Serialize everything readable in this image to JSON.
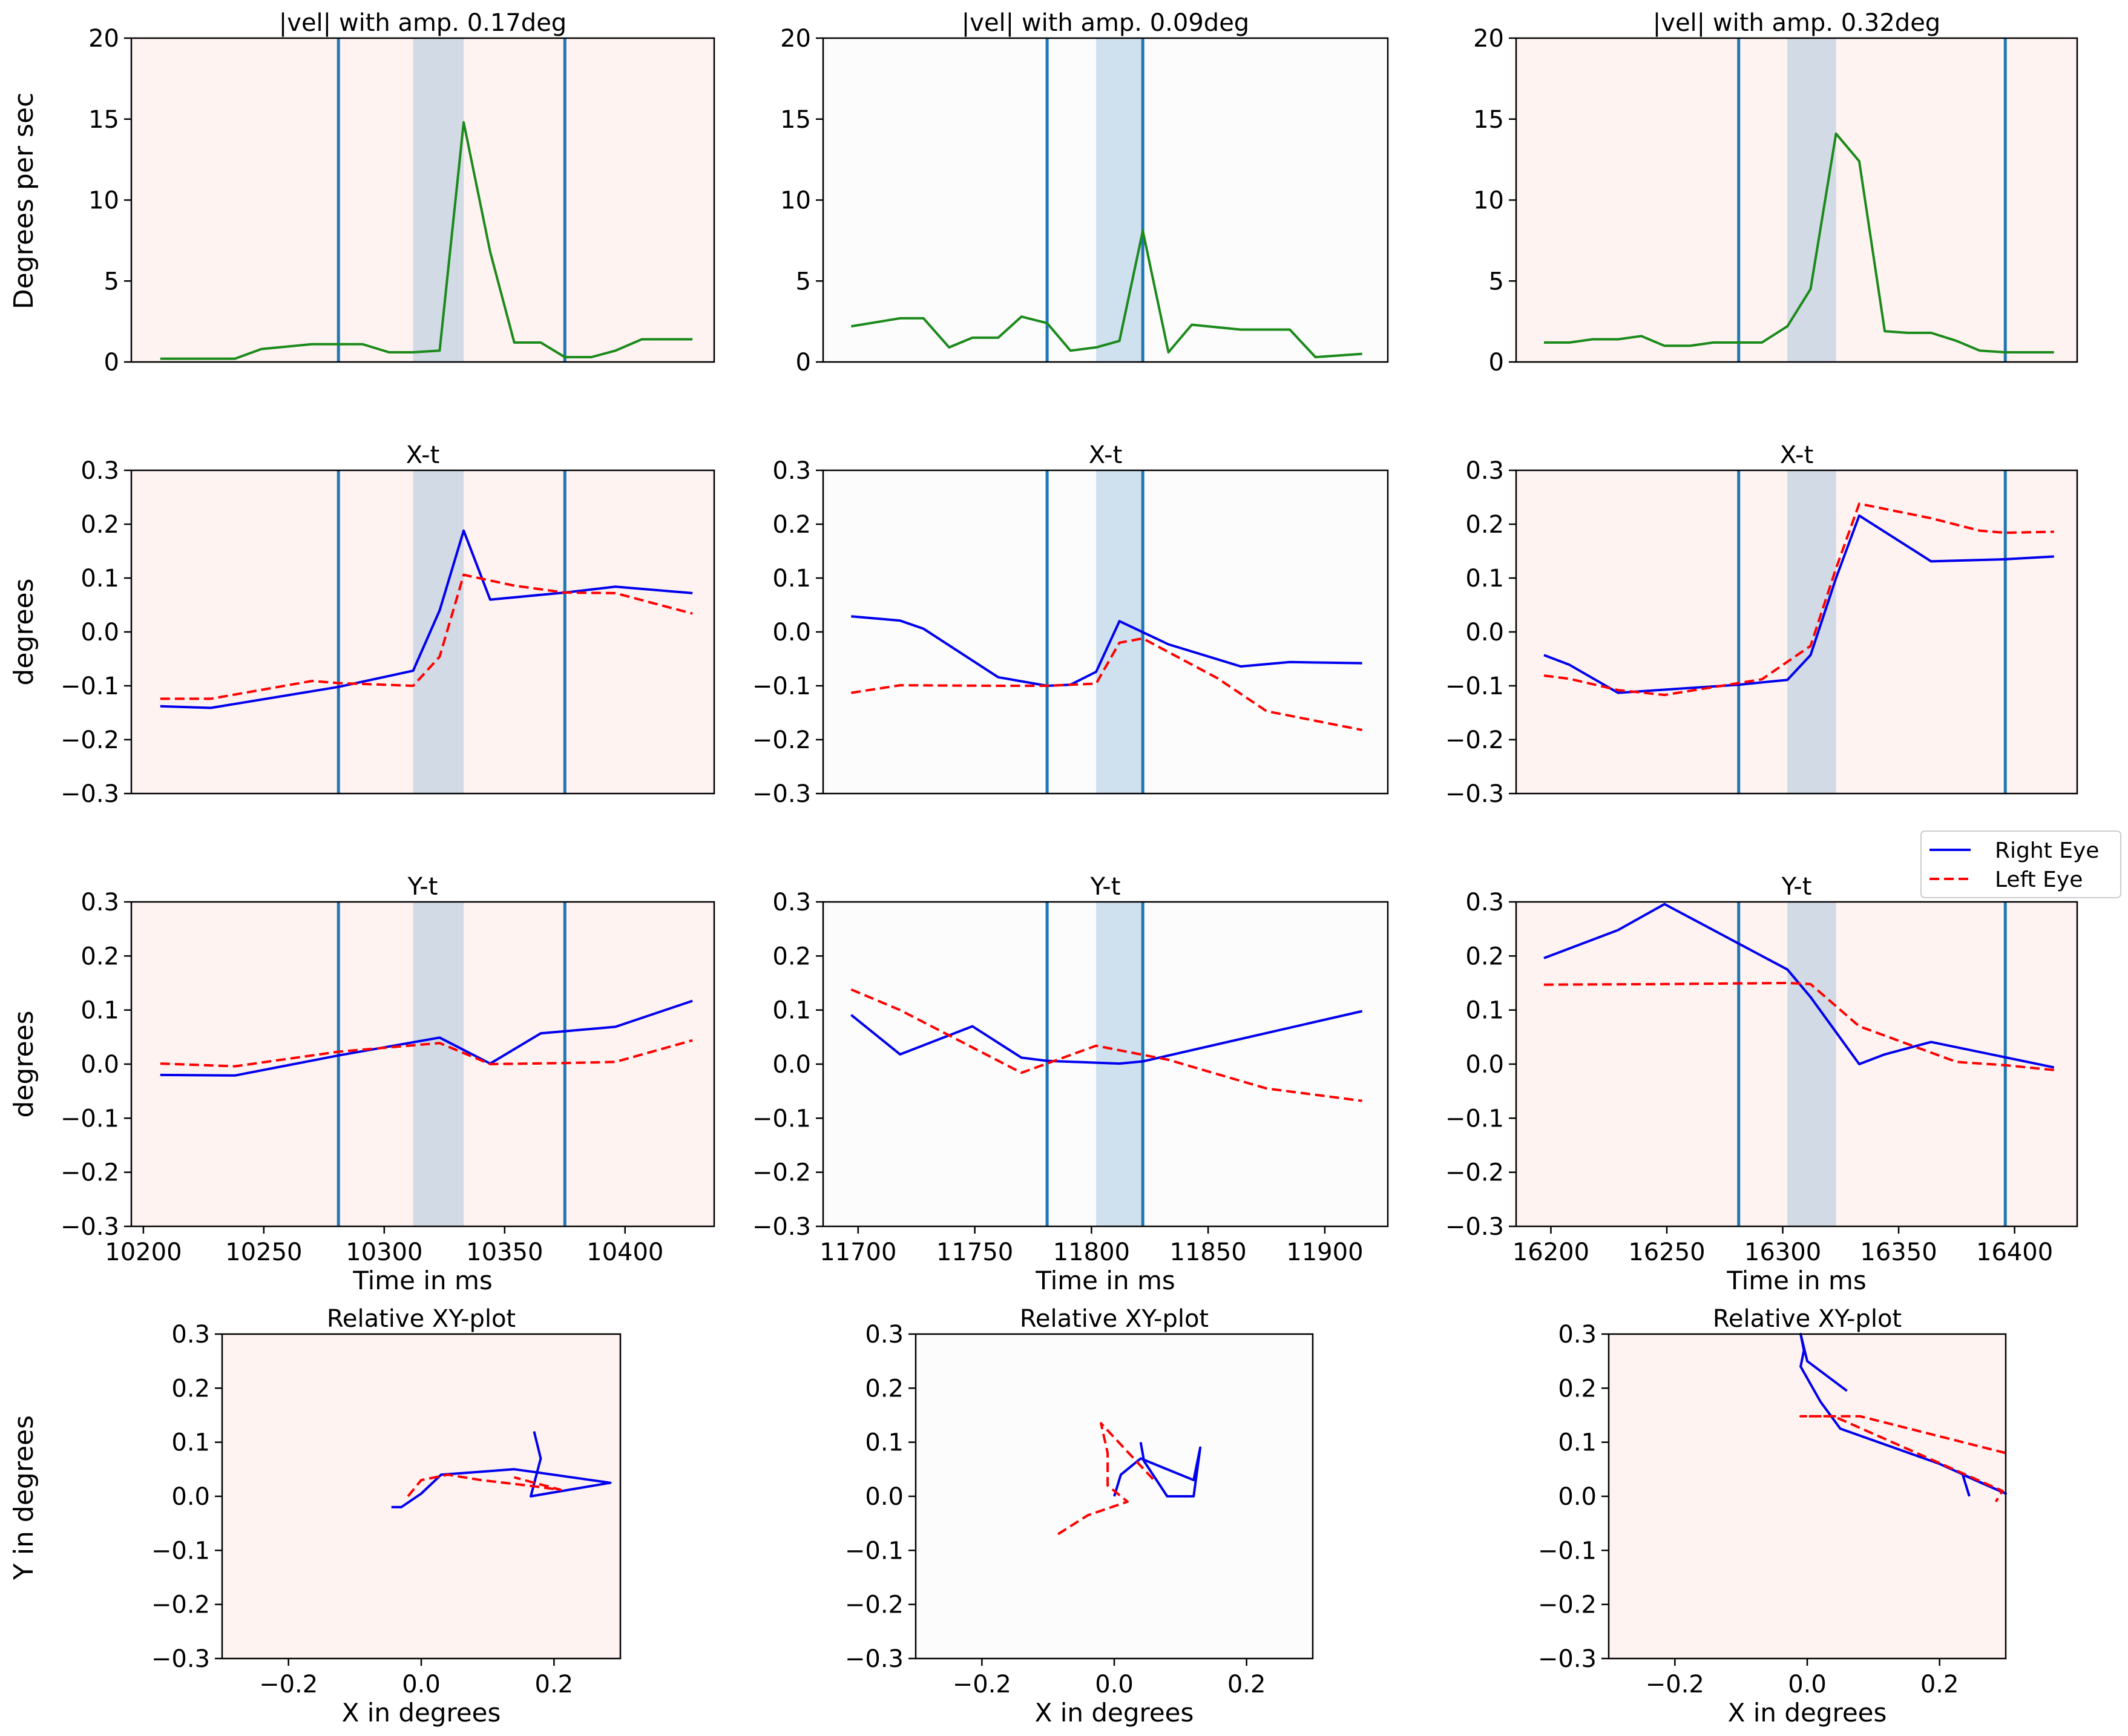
{
  "figure": {
    "row_labels": {
      "velocity": "Degrees per sec",
      "position": "degrees",
      "xy": "Y in degrees"
    },
    "legend": {
      "right_eye": "Right Eye",
      "left_eye": "Left Eye"
    },
    "colors": {
      "velocity_line": "#1a8a1a",
      "right_eye": "#0000ee",
      "left_eye": "#ff0000",
      "event_line": "#1f77b4",
      "band_dark": "#d2dae5",
      "band_light": "#cfe0ef",
      "bg_pink": "#fff3f1",
      "bg_white": "#fcfcfc"
    }
  },
  "chart_data": [
    {
      "type": "line",
      "panel": "velocity",
      "col": 0,
      "title": "|vel| with amp. 0.17deg",
      "xlim": [
        10195,
        10437
      ],
      "ylim": [
        0,
        20
      ],
      "yticks": [
        0,
        5,
        10,
        15,
        20
      ],
      "background": "pink",
      "vlines": [
        10281,
        10375
      ],
      "band": [
        10312,
        10333
      ],
      "band_style": "dark",
      "series": [
        {
          "name": "velocity",
          "color": "green",
          "x": [
            10207,
            10228,
            10238,
            10249,
            10270,
            10281,
            10291,
            10302,
            10312,
            10323,
            10333,
            10344,
            10354,
            10365,
            10375,
            10386,
            10396,
            10407,
            10428
          ],
          "y": [
            0.2,
            0.2,
            0.2,
            0.8,
            1.1,
            1.1,
            1.1,
            0.6,
            0.6,
            0.7,
            14.8,
            6.8,
            1.2,
            1.2,
            0.3,
            0.3,
            0.7,
            1.4,
            1.4
          ]
        }
      ]
    },
    {
      "type": "line",
      "panel": "velocity",
      "col": 1,
      "title": "|vel| with amp. 0.09deg",
      "xlim": [
        11685,
        11927
      ],
      "ylim": [
        0,
        20
      ],
      "yticks": [
        0,
        5,
        10,
        15,
        20
      ],
      "background": "white",
      "vlines": [
        11781,
        11822
      ],
      "band": [
        11802,
        11822
      ],
      "band_style": "light",
      "series": [
        {
          "name": "velocity",
          "color": "green",
          "x": [
            11697,
            11718,
            11728,
            11739,
            11749,
            11760,
            11770,
            11781,
            11791,
            11802,
            11812,
            11822,
            11833,
            11843,
            11864,
            11885,
            11896,
            11916
          ],
          "y": [
            2.2,
            2.7,
            2.7,
            0.9,
            1.5,
            1.5,
            2.8,
            2.4,
            0.7,
            0.9,
            1.3,
            8.1,
            0.6,
            2.3,
            2.0,
            2.0,
            0.3,
            0.5
          ]
        }
      ]
    },
    {
      "type": "line",
      "panel": "velocity",
      "col": 2,
      "title": "|vel| with amp. 0.32deg",
      "xlim": [
        16185,
        16427
      ],
      "ylim": [
        0,
        20
      ],
      "yticks": [
        0,
        5,
        10,
        15,
        20
      ],
      "background": "pink",
      "vlines": [
        16281,
        16396
      ],
      "band": [
        16302,
        16323
      ],
      "band_style": "dark",
      "series": [
        {
          "name": "velocity",
          "color": "green",
          "x": [
            16197,
            16208,
            16218,
            16229,
            16239,
            16249,
            16260,
            16270,
            16281,
            16291,
            16302,
            16312,
            16323,
            16333,
            16344,
            16354,
            16364,
            16375,
            16385,
            16396,
            16406,
            16417
          ],
          "y": [
            1.2,
            1.2,
            1.4,
            1.4,
            1.6,
            1.0,
            1.0,
            1.2,
            1.2,
            1.2,
            2.2,
            4.5,
            14.1,
            12.4,
            1.9,
            1.8,
            1.8,
            1.3,
            0.7,
            0.6,
            0.6,
            0.6
          ]
        }
      ]
    },
    {
      "type": "line",
      "panel": "x-t",
      "col": 0,
      "title": "X-t",
      "xlim": [
        10195,
        10437
      ],
      "ylim": [
        -0.3,
        0.3
      ],
      "yticks": [
        -0.3,
        -0.2,
        -0.1,
        0.0,
        0.1,
        0.2,
        0.3
      ],
      "background": "pink",
      "vlines": [
        10281,
        10375
      ],
      "band": [
        10312,
        10333
      ],
      "band_style": "dark",
      "series": [
        {
          "name": "Right Eye",
          "style": "solid",
          "x": [
            10207,
            10228,
            10281,
            10312,
            10323,
            10333,
            10344,
            10375,
            10396,
            10428
          ],
          "y": [
            -0.138,
            -0.141,
            -0.102,
            -0.072,
            0.04,
            0.188,
            0.06,
            0.073,
            0.084,
            0.072
          ]
        },
        {
          "name": "Left Eye",
          "style": "dashed",
          "x": [
            10207,
            10228,
            10270,
            10281,
            10312,
            10323,
            10333,
            10354,
            10375,
            10396,
            10428
          ],
          "y": [
            -0.124,
            -0.124,
            -0.091,
            -0.095,
            -0.1,
            -0.046,
            0.106,
            0.086,
            0.073,
            0.072,
            0.034
          ]
        }
      ]
    },
    {
      "type": "line",
      "panel": "x-t",
      "col": 1,
      "title": "X-t",
      "xlim": [
        11685,
        11927
      ],
      "ylim": [
        -0.3,
        0.3
      ],
      "yticks": [
        -0.3,
        -0.2,
        -0.1,
        0.0,
        0.1,
        0.2,
        0.3
      ],
      "background": "white",
      "vlines": [
        11781,
        11822
      ],
      "band": [
        11802,
        11822
      ],
      "band_style": "light",
      "series": [
        {
          "name": "Right Eye",
          "style": "solid",
          "x": [
            11697,
            11718,
            11728,
            11760,
            11781,
            11791,
            11802,
            11812,
            11833,
            11864,
            11885,
            11916
          ],
          "y": [
            0.029,
            0.021,
            0.006,
            -0.084,
            -0.1,
            -0.098,
            -0.074,
            0.02,
            -0.023,
            -0.064,
            -0.056,
            -0.058
          ]
        },
        {
          "name": "Left Eye",
          "style": "dashed",
          "x": [
            11697,
            11718,
            11760,
            11781,
            11802,
            11812,
            11822,
            11854,
            11875,
            11916
          ],
          "y": [
            -0.113,
            -0.099,
            -0.1,
            -0.1,
            -0.096,
            -0.02,
            -0.012,
            -0.086,
            -0.147,
            -0.182
          ]
        }
      ]
    },
    {
      "type": "line",
      "panel": "x-t",
      "col": 2,
      "title": "X-t",
      "xlim": [
        16185,
        16427
      ],
      "ylim": [
        -0.3,
        0.3
      ],
      "yticks": [
        -0.3,
        -0.2,
        -0.1,
        0.0,
        0.1,
        0.2,
        0.3
      ],
      "background": "pink",
      "vlines": [
        16281,
        16396
      ],
      "band": [
        16302,
        16323
      ],
      "band_style": "dark",
      "series": [
        {
          "name": "Right Eye",
          "style": "solid",
          "x": [
            16197,
            16208,
            16229,
            16281,
            16302,
            16312,
            16323,
            16333,
            16364,
            16396,
            16417
          ],
          "y": [
            -0.043,
            -0.061,
            -0.113,
            -0.098,
            -0.089,
            -0.043,
            0.1,
            0.216,
            0.131,
            0.135,
            0.14
          ]
        },
        {
          "name": "Left Eye",
          "style": "dashed",
          "x": [
            16197,
            16208,
            16229,
            16249,
            16291,
            16312,
            16323,
            16333,
            16364,
            16385,
            16396,
            16417
          ],
          "y": [
            -0.081,
            -0.087,
            -0.108,
            -0.117,
            -0.088,
            -0.026,
            0.118,
            0.238,
            0.211,
            0.188,
            0.184,
            0.186
          ]
        }
      ]
    },
    {
      "type": "line",
      "panel": "y-t",
      "col": 0,
      "title": "Y-t",
      "xlim": [
        10195,
        10437
      ],
      "ylim": [
        -0.3,
        0.3
      ],
      "yticks": [
        -0.3,
        -0.2,
        -0.1,
        0.0,
        0.1,
        0.2,
        0.3
      ],
      "xticks": [
        10200,
        10250,
        10300,
        10350,
        10400
      ],
      "xlabel": "Time in ms",
      "background": "pink",
      "vlines": [
        10281,
        10375
      ],
      "band": [
        10312,
        10333
      ],
      "band_style": "dark",
      "series": [
        {
          "name": "Right Eye",
          "style": "solid",
          "x": [
            10207,
            10238,
            10281,
            10323,
            10344,
            10365,
            10396,
            10428
          ],
          "y": [
            -0.02,
            -0.021,
            0.016,
            0.049,
            0.001,
            0.057,
            0.069,
            0.117
          ]
        },
        {
          "name": "Left Eye",
          "style": "dashed",
          "x": [
            10207,
            10238,
            10281,
            10323,
            10344,
            10375,
            10396,
            10428
          ],
          "y": [
            0.001,
            -0.004,
            0.023,
            0.039,
            0.0,
            0.002,
            0.004,
            0.044
          ]
        }
      ]
    },
    {
      "type": "line",
      "panel": "y-t",
      "col": 1,
      "title": "Y-t",
      "xlim": [
        11685,
        11927
      ],
      "ylim": [
        -0.3,
        0.3
      ],
      "yticks": [
        -0.3,
        -0.2,
        -0.1,
        0.0,
        0.1,
        0.2,
        0.3
      ],
      "xticks": [
        11700,
        11750,
        11800,
        11850,
        11900
      ],
      "xlabel": "Time in ms",
      "background": "white",
      "vlines": [
        11781,
        11822
      ],
      "band": [
        11802,
        11822
      ],
      "band_style": "light",
      "series": [
        {
          "name": "Right Eye",
          "style": "solid",
          "x": [
            11697,
            11718,
            11749,
            11770,
            11781,
            11812,
            11822,
            11916
          ],
          "y": [
            0.091,
            0.018,
            0.07,
            0.012,
            0.006,
            0.001,
            0.005,
            0.098
          ]
        },
        {
          "name": "Left Eye",
          "style": "dashed",
          "x": [
            11697,
            11718,
            11770,
            11802,
            11833,
            11875,
            11916
          ],
          "y": [
            0.138,
            0.1,
            -0.016,
            0.034,
            0.008,
            -0.045,
            -0.068
          ]
        }
      ]
    },
    {
      "type": "line",
      "panel": "y-t",
      "col": 2,
      "title": "Y-t",
      "xlim": [
        16185,
        16427
      ],
      "ylim": [
        -0.3,
        0.3
      ],
      "yticks": [
        -0.3,
        -0.2,
        -0.1,
        0.0,
        0.1,
        0.2,
        0.3
      ],
      "xticks": [
        16200,
        16250,
        16300,
        16350,
        16400
      ],
      "xlabel": "Time in ms",
      "background": "pink",
      "vlines": [
        16281,
        16396
      ],
      "band": [
        16302,
        16323
      ],
      "band_style": "dark",
      "series": [
        {
          "name": "Right Eye",
          "style": "solid",
          "x": [
            16197,
            16229,
            16249,
            16302,
            16312,
            16333,
            16344,
            16364,
            16417
          ],
          "y": [
            0.196,
            0.248,
            0.296,
            0.175,
            0.124,
            0.0,
            0.018,
            0.041,
            -0.006
          ]
        },
        {
          "name": "Left Eye",
          "style": "dashed",
          "x": [
            16197,
            16249,
            16302,
            16312,
            16333,
            16375,
            16396,
            16417
          ],
          "y": [
            0.147,
            0.148,
            0.15,
            0.148,
            0.07,
            0.004,
            -0.002,
            -0.011
          ]
        }
      ]
    },
    {
      "type": "line",
      "panel": "xy",
      "col": 0,
      "title": "Relative XY-plot",
      "xlim": [
        -0.3,
        0.3
      ],
      "ylim": [
        -0.3,
        0.3
      ],
      "xticks": [
        -0.2,
        0.0,
        0.2
      ],
      "yticks": [
        -0.3,
        -0.2,
        -0.1,
        0.0,
        0.1,
        0.2,
        0.3
      ],
      "xlabel": "X in degrees",
      "background": "pink",
      "series": [
        {
          "name": "Right Eye",
          "style": "solid",
          "x": [
            -0.045,
            -0.04,
            -0.03,
            0.0,
            0.03,
            0.14,
            0.17,
            0.285,
            0.165,
            0.18,
            0.17
          ],
          "y": [
            -0.02,
            -0.02,
            -0.02,
            0.005,
            0.04,
            0.05,
            0.045,
            0.025,
            0.0,
            0.07,
            0.12
          ]
        },
        {
          "name": "Left Eye",
          "style": "dashed",
          "x": [
            -0.02,
            0.0,
            0.04,
            0.09,
            0.16,
            0.21,
            0.14
          ],
          "y": [
            0.0,
            0.03,
            0.04,
            0.03,
            0.02,
            0.012,
            0.035
          ]
        }
      ]
    },
    {
      "type": "line",
      "panel": "xy",
      "col": 1,
      "title": "Relative XY-plot",
      "xlim": [
        -0.3,
        0.3
      ],
      "ylim": [
        -0.3,
        0.3
      ],
      "xticks": [
        -0.2,
        0.0,
        0.2
      ],
      "yticks": [
        -0.3,
        -0.2,
        -0.1,
        0.0,
        0.1,
        0.2,
        0.3
      ],
      "xlabel": "X in degrees",
      "background": "white",
      "series": [
        {
          "name": "Right Eye",
          "style": "solid",
          "x": [
            0.0,
            0.01,
            0.04,
            0.12,
            0.13,
            0.12,
            0.08,
            0.045,
            0.04
          ],
          "y": [
            0.0,
            0.04,
            0.07,
            0.03,
            0.09,
            0.0,
            0.0,
            0.065,
            0.1
          ]
        },
        {
          "name": "Left Eye",
          "style": "dashed",
          "x": [
            -0.085,
            -0.04,
            0.02,
            -0.01,
            -0.01,
            -0.02,
            0.06
          ],
          "y": [
            -0.07,
            -0.035,
            -0.01,
            0.02,
            0.08,
            0.135,
            0.03
          ]
        }
      ]
    },
    {
      "type": "line",
      "panel": "xy",
      "col": 2,
      "title": "Relative XY-plot",
      "xlim": [
        -0.3,
        0.3
      ],
      "ylim": [
        -0.3,
        0.3
      ],
      "xticks": [
        -0.2,
        0.0,
        0.2
      ],
      "yticks": [
        -0.3,
        -0.2,
        -0.1,
        0.0,
        0.1,
        0.2,
        0.3
      ],
      "xlabel": "X in degrees",
      "background": "pink",
      "series": [
        {
          "name": "Right Eye",
          "style": "solid",
          "x": [
            0.06,
            0.0,
            -0.01,
            -0.005,
            -0.01,
            0.02,
            0.05,
            0.2,
            0.3,
            0.235,
            0.245
          ],
          "y": [
            0.195,
            0.25,
            0.3,
            0.27,
            0.24,
            0.175,
            0.125,
            0.06,
            0.005,
            0.04,
            0.0
          ]
        },
        {
          "name": "Left Eye",
          "style": "dashed",
          "x": [
            0.3,
            0.08,
            -0.01,
            0.04,
            0.295,
            0.285
          ],
          "y": [
            0.08,
            0.148,
            0.148,
            0.148,
            0.01,
            -0.01
          ]
        }
      ]
    }
  ]
}
